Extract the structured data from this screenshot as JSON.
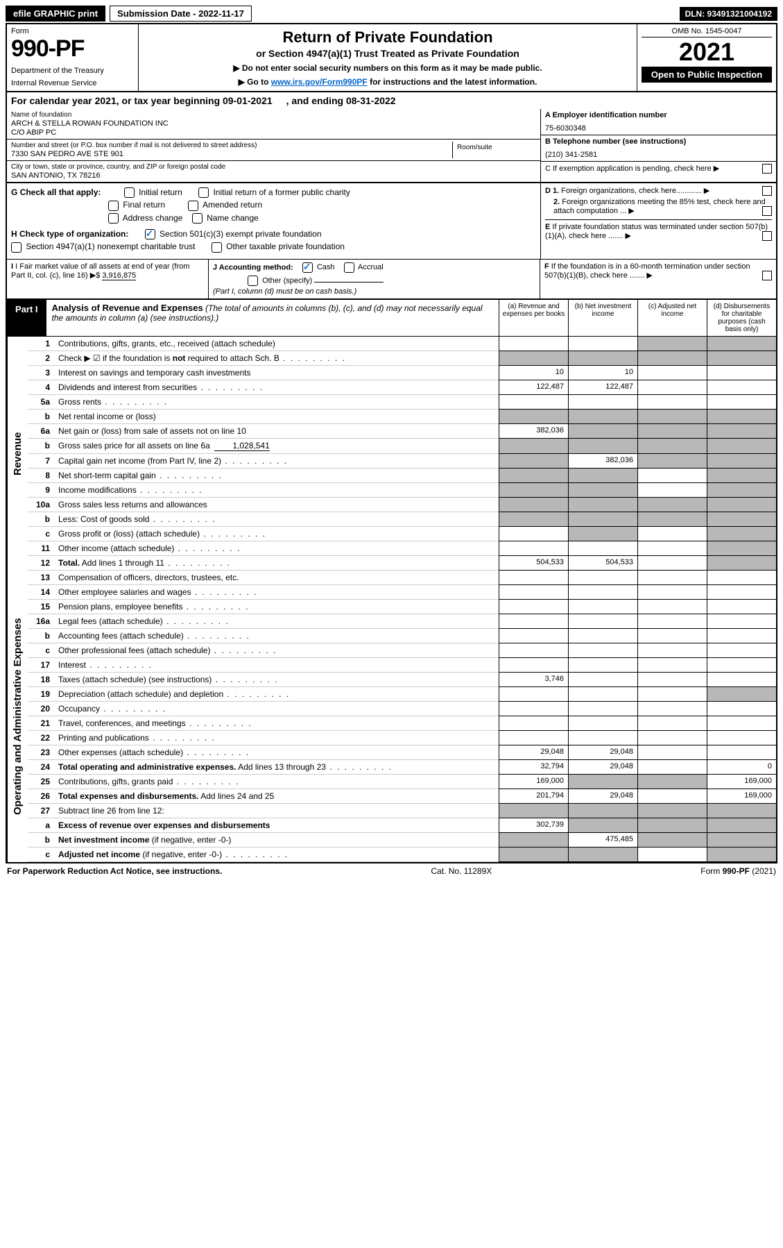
{
  "topbar": {
    "efile": "efile GRAPHIC print",
    "submission_label": "Submission Date - 2022-11-17",
    "dln": "DLN: 93491321004192"
  },
  "header": {
    "form_label": "Form",
    "form_number": "990-PF",
    "dept": "Department of the Treasury",
    "irs": "Internal Revenue Service",
    "title": "Return of Private Foundation",
    "subtitle": "or Section 4947(a)(1) Trust Treated as Private Foundation",
    "note1": "▶ Do not enter social security numbers on this form as it may be made public.",
    "note2_pre": "▶ Go to ",
    "note2_link": "www.irs.gov/Form990PF",
    "note2_post": " for instructions and the latest information.",
    "omb": "OMB No. 1545-0047",
    "year": "2021",
    "open": "Open to Public Inspection"
  },
  "calendar": {
    "text1": "For calendar year 2021, or tax year beginning 09-01-2021",
    "text2": ", and ending 08-31-2022"
  },
  "info": {
    "name_lbl": "Name of foundation",
    "name_val1": "ARCH & STELLA ROWAN FOUNDATION INC",
    "name_val2": "C/O ABIP PC",
    "addr_lbl": "Number and street (or P.O. box number if mail is not delivered to street address)",
    "addr_val": "7330 SAN PEDRO AVE STE 901",
    "room_lbl": "Room/suite",
    "city_lbl": "City or town, state or province, country, and ZIP or foreign postal code",
    "city_val": "SAN ANTONIO, TX  78216",
    "a_lbl": "A Employer identification number",
    "a_val": "75-6030348",
    "b_lbl": "B Telephone number (see instructions)",
    "b_val": "(210) 341-2581",
    "c_lbl": "C If exemption application is pending, check here",
    "d1_lbl": "D 1. Foreign organizations, check here............",
    "d2_lbl": "2. Foreign organizations meeting the 85% test, check here and attach computation ...",
    "e_lbl": "E  If private foundation status was terminated under section 507(b)(1)(A), check here .......",
    "f_lbl": "F  If the foundation is in a 60-month termination under section 507(b)(1)(B), check here .......",
    "g_lbl": "G Check all that apply:",
    "g_opts": [
      "Initial return",
      "Initial return of a former public charity",
      "Final return",
      "Amended return",
      "Address change",
      "Name change"
    ],
    "h_lbl": "H Check type of organization:",
    "h_opt1": "Section 501(c)(3) exempt private foundation",
    "h_opt2": "Section 4947(a)(1) nonexempt charitable trust",
    "h_opt3": "Other taxable private foundation",
    "i_lbl": "I Fair market value of all assets at end of year (from Part II, col. (c), line 16)",
    "i_val": "3,916,875",
    "i_prefix": "▶$",
    "j_lbl": "J Accounting method:",
    "j_cash": "Cash",
    "j_accrual": "Accrual",
    "j_other": "Other (specify)",
    "j_note": "(Part I, column (d) must be on cash basis.)"
  },
  "part1": {
    "label": "Part I",
    "title": "Analysis of Revenue and Expenses",
    "title_note": " (The total of amounts in columns (b), (c), and (d) may not necessarily equal the amounts in column (a) (see instructions).)",
    "cols": {
      "a": "(a)   Revenue and expenses per books",
      "b": "(b)   Net investment income",
      "c": "(c)   Adjusted net income",
      "d": "(d)   Disbursements for charitable purposes (cash basis only)"
    }
  },
  "sections": {
    "revenue": "Revenue",
    "expenses": "Operating and Administrative Expenses"
  },
  "rows": [
    {
      "n": "1",
      "d": "Contributions, gifts, grants, etc., received (attach schedule)",
      "a": "",
      "b": "",
      "c": "g",
      "dd": "g"
    },
    {
      "n": "2",
      "d": "Check ▶ ☑ if the foundation is <b>not</b> required to attach Sch. B",
      "a": "g",
      "b": "g",
      "c": "g",
      "dd": "g",
      "dots": true
    },
    {
      "n": "3",
      "d": "Interest on savings and temporary cash investments",
      "a": "10",
      "b": "10",
      "c": "",
      "dd": ""
    },
    {
      "n": "4",
      "d": "Dividends and interest from securities",
      "a": "122,487",
      "b": "122,487",
      "c": "",
      "dd": "",
      "dots": true
    },
    {
      "n": "5a",
      "d": "Gross rents",
      "a": "",
      "b": "",
      "c": "",
      "dd": "",
      "dots": true
    },
    {
      "n": "b",
      "d": "Net rental income or (loss)",
      "a": "g",
      "b": "g",
      "c": "g",
      "dd": "g"
    },
    {
      "n": "6a",
      "d": "Net gain or (loss) from sale of assets not on line 10",
      "a": "382,036",
      "b": "g",
      "c": "g",
      "dd": "g"
    },
    {
      "n": "b",
      "d": "Gross sales price for all assets on line 6a",
      "extra": "1,028,541",
      "a": "g",
      "b": "g",
      "c": "g",
      "dd": "g"
    },
    {
      "n": "7",
      "d": "Capital gain net income (from Part IV, line 2)",
      "a": "g",
      "b": "382,036",
      "c": "g",
      "dd": "g",
      "dots": true
    },
    {
      "n": "8",
      "d": "Net short-term capital gain",
      "a": "g",
      "b": "g",
      "c": "",
      "dd": "g",
      "dots": true
    },
    {
      "n": "9",
      "d": "Income modifications",
      "a": "g",
      "b": "g",
      "c": "",
      "dd": "g",
      "dots": true
    },
    {
      "n": "10a",
      "d": "Gross sales less returns and allowances",
      "a": "g",
      "b": "g",
      "c": "g",
      "dd": "g",
      "box": true
    },
    {
      "n": "b",
      "d": "Less: Cost of goods sold",
      "a": "g",
      "b": "g",
      "c": "g",
      "dd": "g",
      "dots": true,
      "box": true
    },
    {
      "n": "c",
      "d": "Gross profit or (loss) (attach schedule)",
      "a": "",
      "b": "g",
      "c": "",
      "dd": "g",
      "dots": true
    },
    {
      "n": "11",
      "d": "Other income (attach schedule)",
      "a": "",
      "b": "",
      "c": "",
      "dd": "g",
      "dots": true
    },
    {
      "n": "12",
      "d": "<b>Total.</b> Add lines 1 through 11",
      "a": "504,533",
      "b": "504,533",
      "c": "",
      "dd": "g",
      "dots": true
    }
  ],
  "exp_rows": [
    {
      "n": "13",
      "d": "Compensation of officers, directors, trustees, etc.",
      "a": "",
      "b": "",
      "c": "",
      "dd": ""
    },
    {
      "n": "14",
      "d": "Other employee salaries and wages",
      "a": "",
      "b": "",
      "c": "",
      "dd": "",
      "dots": true
    },
    {
      "n": "15",
      "d": "Pension plans, employee benefits",
      "a": "",
      "b": "",
      "c": "",
      "dd": "",
      "dots": true
    },
    {
      "n": "16a",
      "d": "Legal fees (attach schedule)",
      "a": "",
      "b": "",
      "c": "",
      "dd": "",
      "dots": true
    },
    {
      "n": "b",
      "d": "Accounting fees (attach schedule)",
      "a": "",
      "b": "",
      "c": "",
      "dd": "",
      "dots": true
    },
    {
      "n": "c",
      "d": "Other professional fees (attach schedule)",
      "a": "",
      "b": "",
      "c": "",
      "dd": "",
      "dots": true
    },
    {
      "n": "17",
      "d": "Interest",
      "a": "",
      "b": "",
      "c": "",
      "dd": "",
      "dots": true
    },
    {
      "n": "18",
      "d": "Taxes (attach schedule) (see instructions)",
      "a": "3,746",
      "b": "",
      "c": "",
      "dd": "",
      "dots": true
    },
    {
      "n": "19",
      "d": "Depreciation (attach schedule) and depletion",
      "a": "",
      "b": "",
      "c": "",
      "dd": "g",
      "dots": true
    },
    {
      "n": "20",
      "d": "Occupancy",
      "a": "",
      "b": "",
      "c": "",
      "dd": "",
      "dots": true
    },
    {
      "n": "21",
      "d": "Travel, conferences, and meetings",
      "a": "",
      "b": "",
      "c": "",
      "dd": "",
      "dots": true
    },
    {
      "n": "22",
      "d": "Printing and publications",
      "a": "",
      "b": "",
      "c": "",
      "dd": "",
      "dots": true
    },
    {
      "n": "23",
      "d": "Other expenses (attach schedule)",
      "a": "29,048",
      "b": "29,048",
      "c": "",
      "dd": "",
      "dots": true
    },
    {
      "n": "24",
      "d": "<b>Total operating and administrative expenses.</b> Add lines 13 through 23",
      "a": "32,794",
      "b": "29,048",
      "c": "",
      "dd": "0",
      "dots": true
    },
    {
      "n": "25",
      "d": "Contributions, gifts, grants paid",
      "a": "169,000",
      "b": "g",
      "c": "g",
      "dd": "169,000",
      "dots": true
    },
    {
      "n": "26",
      "d": "<b>Total expenses and disbursements.</b> Add lines 24 and 25",
      "a": "201,794",
      "b": "29,048",
      "c": "",
      "dd": "169,000"
    },
    {
      "n": "27",
      "d": "Subtract line 26 from line 12:",
      "a": "g",
      "b": "g",
      "c": "g",
      "dd": "g"
    },
    {
      "n": "a",
      "d": "<b>Excess of revenue over expenses and disbursements</b>",
      "a": "302,739",
      "b": "g",
      "c": "g",
      "dd": "g"
    },
    {
      "n": "b",
      "d": "<b>Net investment income</b> (if negative, enter -0-)",
      "a": "g",
      "b": "475,485",
      "c": "g",
      "dd": "g"
    },
    {
      "n": "c",
      "d": "<b>Adjusted net income</b> (if negative, enter -0-)",
      "a": "g",
      "b": "g",
      "c": "",
      "dd": "g",
      "dots": true
    }
  ],
  "footer": {
    "left": "For Paperwork Reduction Act Notice, see instructions.",
    "mid": "Cat. No. 11289X",
    "right": "Form 990-PF (2021)"
  }
}
